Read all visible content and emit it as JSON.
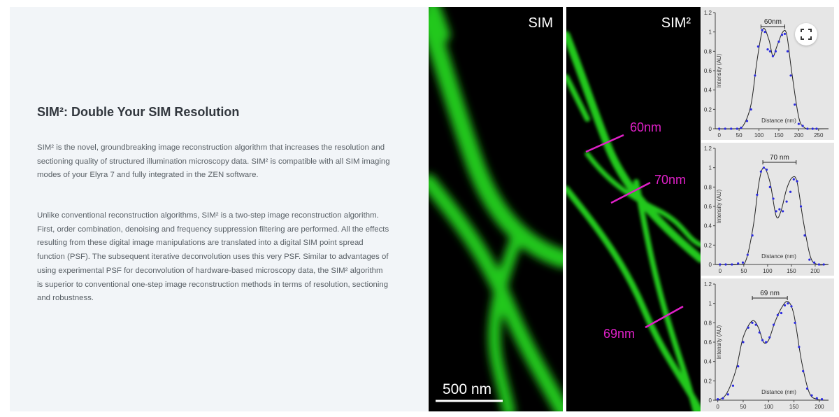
{
  "article": {
    "title": "SIM²: Double Your SIM Resolution",
    "paragraph1": "SIM² is the novel, groundbreaking image reconstruction algorithm that increases the resolution and sectioning quality of structured illumination microscopy data. SIM² is compatible with all SIM imaging modes of your Elyra 7 and fully integrated in the ZEN software.",
    "paragraph2": "Unlike conventional reconstruction algorithms, SIM² is a two-step image reconstruction algorithm. First, order combination, denoising and frequency suppression filtering are performed. All the effects resulting from these digital image manipulations are translated into a digital SIM point spread function (PSF). The subsequent iterative deconvolution uses this very PSF. Similar to advantages of using experimental PSF for deconvolution of hardware-based microscopy data, the SIM² algorithm is superior to conventional one-step image reconstruction methods in terms of resolution, sectioning and robustness."
  },
  "images": {
    "sim_label": "SIM",
    "sim2_label": "SIM²",
    "scale_bar_label": "500 nm",
    "annotations": [
      "60nm",
      "70nm",
      "69nm"
    ],
    "annotation_color": "#e020c8",
    "filament_color": "#22c81e"
  },
  "controls": {
    "expand_icon": "expand-fullscreen-icon"
  },
  "chart_data": [
    {
      "type": "line",
      "title": "60nm",
      "xlabel": "Distance (nm)",
      "ylabel": "Intensity (AU)",
      "xlim": [
        -10,
        275
      ],
      "ylim": [
        0,
        1.2
      ],
      "xticks": [
        0,
        50,
        100,
        150,
        200,
        250
      ],
      "yticks": [
        0,
        0.2,
        0.4,
        0.6,
        0.8,
        1,
        1.2
      ],
      "marker_range": [
        105,
        165
      ],
      "curve": {
        "x": [
          -10,
          40,
          60,
          80,
          95,
          110,
          125,
          135,
          145,
          160,
          170,
          182,
          200,
          215,
          235,
          275
        ],
        "y": [
          0,
          0,
          0.03,
          0.25,
          0.7,
          1.03,
          0.92,
          0.75,
          0.85,
          1.0,
          0.97,
          0.6,
          0.12,
          0.01,
          0,
          0
        ]
      },
      "points": {
        "x": [
          0,
          15,
          30,
          45,
          55,
          70,
          80,
          90,
          98,
          108,
          115,
          122,
          128,
          135,
          142,
          150,
          158,
          165,
          172,
          180,
          190,
          200,
          210,
          222,
          235,
          245
        ],
        "y": [
          0,
          0,
          0,
          0,
          0.01,
          0.08,
          0.2,
          0.55,
          0.85,
          1.02,
          1.0,
          0.82,
          0.8,
          0.75,
          0.8,
          0.9,
          0.97,
          0.98,
          0.8,
          0.55,
          0.25,
          0.05,
          0.03,
          0,
          0,
          0
        ]
      }
    },
    {
      "type": "line",
      "title": "70 nm",
      "xlabel": "Distance (nm)",
      "ylabel": "Intensity (AU)",
      "xlim": [
        -10,
        228
      ],
      "ylim": [
        0,
        1.2
      ],
      "xticks": [
        0,
        50,
        100,
        150,
        200
      ],
      "yticks": [
        0,
        0.2,
        0.4,
        0.6,
        0.8,
        1,
        1.2
      ],
      "marker_range": [
        90,
        160
      ],
      "curve": {
        "x": [
          -10,
          40,
          55,
          70,
          82,
          92,
          105,
          118,
          128,
          140,
          152,
          162,
          175,
          190,
          205,
          228
        ],
        "y": [
          0,
          0,
          0.05,
          0.4,
          0.85,
          1.0,
          0.85,
          0.5,
          0.55,
          0.78,
          0.9,
          0.85,
          0.45,
          0.08,
          0,
          0
        ]
      },
      "points": {
        "x": [
          0,
          12,
          25,
          38,
          48,
          58,
          68,
          78,
          86,
          92,
          98,
          105,
          112,
          118,
          125,
          132,
          140,
          148,
          155,
          162,
          170,
          178,
          188,
          198,
          208,
          218
        ],
        "y": [
          0,
          0,
          0,
          0.01,
          0.02,
          0.1,
          0.3,
          0.72,
          0.96,
          1.0,
          0.98,
          0.8,
          0.68,
          0.55,
          0.57,
          0.55,
          0.65,
          0.75,
          0.88,
          0.86,
          0.6,
          0.3,
          0.05,
          0.02,
          0,
          0
        ]
      }
    },
    {
      "type": "line",
      "title": "69 nm",
      "xlabel": "Distance (nm)",
      "ylabel": "Intensity (AU)",
      "xlim": [
        -5,
        218
      ],
      "ylim": [
        0,
        1.2
      ],
      "xticks": [
        0,
        50,
        100,
        150,
        200
      ],
      "yticks": [
        0,
        0.2,
        0.4,
        0.6,
        0.8,
        1,
        1.2
      ],
      "marker_range": [
        68,
        137
      ],
      "curve": {
        "x": [
          -5,
          15,
          35,
          50,
          68,
          80,
          90,
          100,
          112,
          125,
          138,
          150,
          165,
          180,
          195,
          218
        ],
        "y": [
          0,
          0.05,
          0.3,
          0.65,
          0.82,
          0.75,
          0.6,
          0.62,
          0.8,
          0.95,
          1.02,
          0.88,
          0.4,
          0.08,
          0.01,
          0
        ]
      },
      "points": {
        "x": [
          0,
          10,
          20,
          30,
          40,
          50,
          60,
          68,
          75,
          82,
          88,
          95,
          102,
          110,
          118,
          125,
          132,
          138,
          145,
          152,
          160,
          168,
          176,
          185,
          195,
          205
        ],
        "y": [
          0.01,
          0.02,
          0.06,
          0.15,
          0.35,
          0.6,
          0.75,
          0.8,
          0.78,
          0.7,
          0.62,
          0.6,
          0.65,
          0.78,
          0.88,
          0.9,
          0.98,
          1.0,
          0.97,
          0.8,
          0.55,
          0.3,
          0.12,
          0.05,
          0.02,
          0.01
        ]
      }
    }
  ]
}
